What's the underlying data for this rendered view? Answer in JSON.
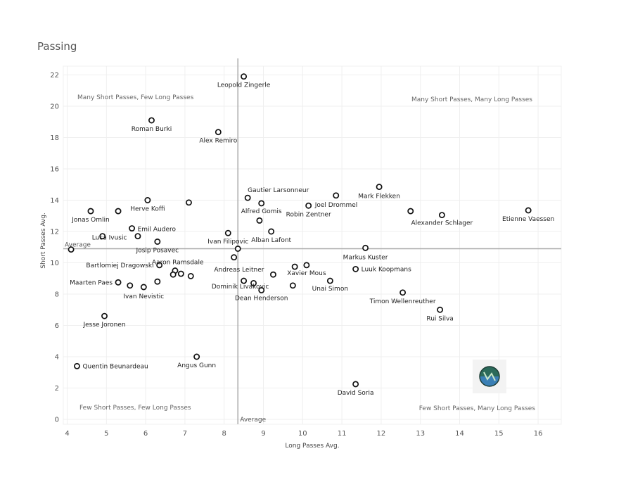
{
  "chart_data": {
    "type": "scatter",
    "title": "Passing",
    "xlabel": "Long Passes Avg.",
    "ylabel": "Short Passes Avg.",
    "xlim": [
      4,
      16.6
    ],
    "ylim": [
      0,
      23
    ],
    "x_ticks": [
      "4",
      "5",
      "6",
      "7",
      "8",
      "9",
      "10",
      "11",
      "12",
      "13",
      "14",
      "15",
      "16"
    ],
    "y_ticks": [
      "0",
      "2",
      "4",
      "6",
      "8",
      "10",
      "12",
      "14",
      "16",
      "18",
      "20",
      "22"
    ],
    "averages": {
      "x": 8.35,
      "y": 10.9,
      "x_label": "Average",
      "y_label": "Average"
    },
    "quadrant_labels": {
      "top_left": "Many Short Passes, Few Long Passes",
      "top_right": "Many Short Passes, Many Long Passes",
      "bottom_left": "Few Short Passes, Few Long Passes",
      "bottom_right": "Few Short Passes, Many Long Passes"
    },
    "points": [
      {
        "x": 8.5,
        "y": 21.9,
        "label": "Leopold Zingerle"
      },
      {
        "x": 6.15,
        "y": 19.1,
        "label": "Roman Burki"
      },
      {
        "x": 7.85,
        "y": 18.35,
        "label": "Alex Remiro"
      },
      {
        "x": 11.95,
        "y": 14.85,
        "label": "Mark Flekken"
      },
      {
        "x": 10.85,
        "y": 14.3,
        "label": "Joel Drommel"
      },
      {
        "x": 8.6,
        "y": 14.15,
        "label": "Gautier Larsonneur"
      },
      {
        "x": 8.95,
        "y": 13.8,
        "label": "Alfred Gomis"
      },
      {
        "x": 10.15,
        "y": 13.65,
        "label": "Robin Zentner"
      },
      {
        "x": 15.75,
        "y": 13.35,
        "label": "Etienne Vaessen"
      },
      {
        "x": 13.55,
        "y": 13.05,
        "label": "Alexander Schlager"
      },
      {
        "x": 12.75,
        "y": 13.3,
        "label": ""
      },
      {
        "x": 6.05,
        "y": 14.0,
        "label": "Herve Koffi"
      },
      {
        "x": 7.1,
        "y": 13.85,
        "label": ""
      },
      {
        "x": 4.6,
        "y": 13.3,
        "label": "Jonas Omlin"
      },
      {
        "x": 5.3,
        "y": 13.3,
        "label": ""
      },
      {
        "x": 8.9,
        "y": 12.7,
        "label": ""
      },
      {
        "x": 5.65,
        "y": 12.2,
        "label": "Emil Audero"
      },
      {
        "x": 8.1,
        "y": 11.9,
        "label": "Ivan Filipovic"
      },
      {
        "x": 9.2,
        "y": 12.0,
        "label": "Alban Lafont"
      },
      {
        "x": 5.8,
        "y": 11.7,
        "label": ""
      },
      {
        "x": 4.9,
        "y": 11.7,
        "label": "Luca Ivusic"
      },
      {
        "x": 6.3,
        "y": 11.35,
        "label": "Josip Posavec"
      },
      {
        "x": 4.1,
        "y": 10.85,
        "label": ""
      },
      {
        "x": 8.35,
        "y": 10.9,
        "label": ""
      },
      {
        "x": 11.6,
        "y": 10.95,
        "label": "Markus Kuster"
      },
      {
        "x": 8.25,
        "y": 10.35,
        "label": ""
      },
      {
        "x": 6.35,
        "y": 9.85,
        "label": "Bartlomiej Dragowski"
      },
      {
        "x": 6.75,
        "y": 9.5,
        "label": "Aaron Ramsdale"
      },
      {
        "x": 6.7,
        "y": 9.25,
        "label": ""
      },
      {
        "x": 6.9,
        "y": 9.3,
        "label": ""
      },
      {
        "x": 7.15,
        "y": 9.15,
        "label": ""
      },
      {
        "x": 9.25,
        "y": 9.25,
        "label": "Andreas Leitner"
      },
      {
        "x": 9.8,
        "y": 9.75,
        "label": ""
      },
      {
        "x": 10.1,
        "y": 9.85,
        "label": "Xavier Mous"
      },
      {
        "x": 11.35,
        "y": 9.6,
        "label": "Luuk Koopmans"
      },
      {
        "x": 5.3,
        "y": 8.75,
        "label": "Maarten Paes"
      },
      {
        "x": 5.6,
        "y": 8.55,
        "label": ""
      },
      {
        "x": 5.95,
        "y": 8.45,
        "label": "Ivan Nevistic"
      },
      {
        "x": 6.3,
        "y": 8.8,
        "label": ""
      },
      {
        "x": 8.5,
        "y": 8.85,
        "label": "Dominik Livakovic"
      },
      {
        "x": 8.75,
        "y": 8.7,
        "label": ""
      },
      {
        "x": 8.95,
        "y": 8.25,
        "label": "Dean Henderson"
      },
      {
        "x": 9.75,
        "y": 8.55,
        "label": ""
      },
      {
        "x": 10.7,
        "y": 8.85,
        "label": "Unai Simon"
      },
      {
        "x": 12.55,
        "y": 8.1,
        "label": "Timon Wellenreuther"
      },
      {
        "x": 13.5,
        "y": 7.0,
        "label": "Rui Silva"
      },
      {
        "x": 4.95,
        "y": 6.6,
        "label": "Jesse Joronen"
      },
      {
        "x": 7.3,
        "y": 4.0,
        "label": "Angus Gunn"
      },
      {
        "x": 4.25,
        "y": 3.4,
        "label": "Quentin Beunardeau"
      },
      {
        "x": 11.35,
        "y": 2.25,
        "label": "David Soria"
      }
    ]
  }
}
